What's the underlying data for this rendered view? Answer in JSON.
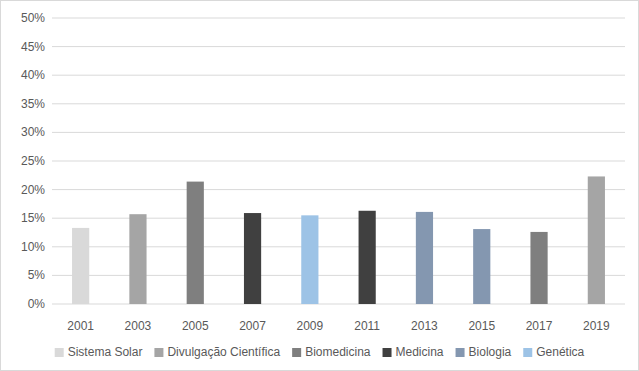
{
  "chart_data": {
    "type": "bar",
    "categories": [
      "2001",
      "2003",
      "2005",
      "2007",
      "2009",
      "2011",
      "2013",
      "2015",
      "2017",
      "2019"
    ],
    "series": [
      {
        "name": "Sistema Solar",
        "color": "#d9d9d9",
        "values": [
          13.3,
          null,
          null,
          null,
          null,
          null,
          null,
          null,
          null,
          null
        ]
      },
      {
        "name": "Divulgação Científica",
        "color": "#a5a5a5",
        "values": [
          null,
          15.7,
          null,
          null,
          null,
          null,
          null,
          null,
          null,
          22.3
        ]
      },
      {
        "name": "Biomedicina",
        "color": "#7f7f7f",
        "values": [
          null,
          null,
          21.4,
          null,
          null,
          null,
          null,
          null,
          12.6,
          null
        ]
      },
      {
        "name": "Medicina",
        "color": "#404040",
        "values": [
          null,
          null,
          null,
          15.9,
          null,
          16.3,
          null,
          null,
          null,
          null
        ]
      },
      {
        "name": "Biologia",
        "color": "#8497b0",
        "values": [
          null,
          null,
          null,
          null,
          null,
          null,
          16.1,
          13.1,
          null,
          null
        ]
      },
      {
        "name": "Genética",
        "color": "#9dc3e6",
        "values": [
          null,
          null,
          null,
          null,
          15.5,
          null,
          null,
          null,
          null,
          null
        ]
      }
    ],
    "ylim": [
      0,
      50
    ],
    "yticks": [
      {
        "value": 0,
        "label": "0%"
      },
      {
        "value": 5,
        "label": "5%"
      },
      {
        "value": 10,
        "label": "10%"
      },
      {
        "value": 15,
        "label": "15%"
      },
      {
        "value": 20,
        "label": "20%"
      },
      {
        "value": 25,
        "label": "25%"
      },
      {
        "value": 30,
        "label": "30%"
      },
      {
        "value": 35,
        "label": "35%"
      },
      {
        "value": 40,
        "label": "40%"
      },
      {
        "value": 45,
        "label": "45%"
      },
      {
        "value": 50,
        "label": "50%"
      }
    ],
    "grid": true,
    "legend": "bottom"
  }
}
